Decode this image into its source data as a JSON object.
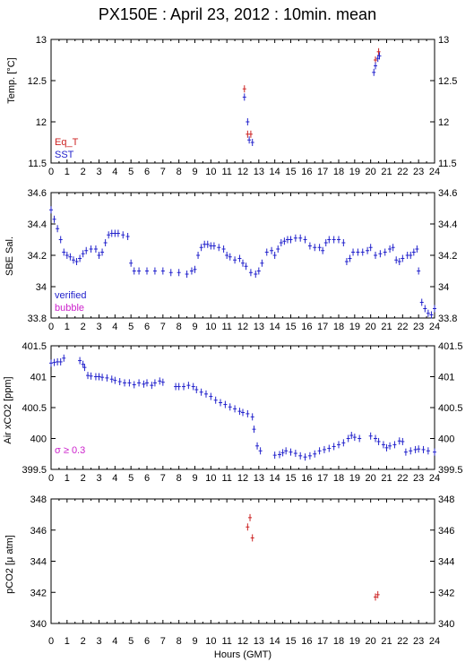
{
  "title": "PX150E : April 23, 2012 : 10min. mean",
  "colors": {
    "red": "#cc2222",
    "blue": "#2222cc",
    "magenta": "#cc22cc",
    "axis": "#000000"
  },
  "xaxis": {
    "label": "Hours (GMT)",
    "range": [
      0,
      24
    ],
    "ticks": [
      "0",
      "1",
      "2",
      "3",
      "4",
      "5",
      "6",
      "7",
      "8",
      "9",
      "10",
      "11",
      "12",
      "13",
      "14",
      "15",
      "16",
      "17",
      "18",
      "19",
      "20",
      "21",
      "22",
      "23",
      "24"
    ]
  },
  "chart_data": [
    {
      "type": "scatter",
      "ylabel": "Temp. [°C]",
      "ylim": [
        11.5,
        13
      ],
      "yticks": [
        "11.5",
        "12",
        "12.5",
        "13"
      ],
      "legend": [
        "Eq_T",
        "SST"
      ],
      "series": [
        {
          "name": "Eq_T",
          "color": "#cc2222",
          "points": [
            [
              12.1,
              12.4
            ],
            [
              12.3,
              11.85
            ],
            [
              12.5,
              11.85
            ],
            [
              20.3,
              12.75
            ],
            [
              20.5,
              12.85
            ]
          ]
        },
        {
          "name": "SST",
          "color": "#2222cc",
          "points": [
            [
              12.1,
              12.3
            ],
            [
              12.3,
              12.0
            ],
            [
              12.4,
              11.78
            ],
            [
              12.6,
              11.75
            ],
            [
              20.2,
              12.6
            ],
            [
              20.3,
              12.68
            ],
            [
              20.45,
              12.77
            ],
            [
              20.55,
              12.8
            ]
          ]
        }
      ]
    },
    {
      "type": "scatter",
      "ylabel": "SBE Sal.",
      "ylim": [
        33.8,
        34.6
      ],
      "yticks": [
        "33.8",
        "34",
        "34.2",
        "34.4",
        "34.6"
      ],
      "legend": [
        "verified",
        "bubble"
      ],
      "series": [
        {
          "name": "verified",
          "color": "#2222cc",
          "points": [
            [
              0.0,
              34.49
            ],
            [
              0.2,
              34.43
            ],
            [
              0.4,
              34.37
            ],
            [
              0.6,
              34.3
            ],
            [
              0.8,
              34.22
            ],
            [
              1.0,
              34.2
            ],
            [
              1.2,
              34.19
            ],
            [
              1.4,
              34.17
            ],
            [
              1.6,
              34.16
            ],
            [
              1.8,
              34.18
            ],
            [
              2.0,
              34.21
            ],
            [
              2.2,
              34.23
            ],
            [
              2.5,
              34.24
            ],
            [
              2.8,
              34.24
            ],
            [
              3.0,
              34.2
            ],
            [
              3.2,
              34.22
            ],
            [
              3.4,
              34.28
            ],
            [
              3.6,
              34.33
            ],
            [
              3.8,
              34.34
            ],
            [
              4.0,
              34.34
            ],
            [
              4.2,
              34.34
            ],
            [
              4.5,
              34.33
            ],
            [
              4.8,
              34.32
            ],
            [
              5.0,
              34.15
            ],
            [
              5.2,
              34.1
            ],
            [
              5.5,
              34.1
            ],
            [
              6.0,
              34.1
            ],
            [
              6.5,
              34.1
            ],
            [
              7.0,
              34.1
            ],
            [
              7.5,
              34.09
            ],
            [
              8.0,
              34.09
            ],
            [
              8.5,
              34.08
            ],
            [
              8.8,
              34.1
            ],
            [
              9.0,
              34.11
            ],
            [
              9.2,
              34.2
            ],
            [
              9.4,
              34.25
            ],
            [
              9.6,
              34.27
            ],
            [
              9.8,
              34.27
            ],
            [
              10.0,
              34.26
            ],
            [
              10.2,
              34.26
            ],
            [
              10.5,
              34.25
            ],
            [
              10.8,
              34.24
            ],
            [
              11.0,
              34.2
            ],
            [
              11.2,
              34.19
            ],
            [
              11.5,
              34.17
            ],
            [
              11.8,
              34.18
            ],
            [
              12.0,
              34.15
            ],
            [
              12.2,
              34.13
            ],
            [
              12.5,
              34.09
            ],
            [
              12.8,
              34.08
            ],
            [
              13.0,
              34.1
            ],
            [
              13.2,
              34.15
            ],
            [
              13.5,
              34.22
            ],
            [
              13.8,
              34.23
            ],
            [
              14.0,
              34.2
            ],
            [
              14.2,
              34.24
            ],
            [
              14.4,
              34.28
            ],
            [
              14.6,
              34.29
            ],
            [
              14.8,
              34.3
            ],
            [
              15.0,
              34.3
            ],
            [
              15.3,
              34.31
            ],
            [
              15.6,
              34.31
            ],
            [
              15.9,
              34.3
            ],
            [
              16.2,
              34.26
            ],
            [
              16.5,
              34.25
            ],
            [
              16.8,
              34.25
            ],
            [
              17.0,
              34.23
            ],
            [
              17.2,
              34.28
            ],
            [
              17.4,
              34.3
            ],
            [
              17.7,
              34.3
            ],
            [
              18.0,
              34.3
            ],
            [
              18.3,
              34.28
            ],
            [
              18.5,
              34.16
            ],
            [
              18.7,
              34.18
            ],
            [
              18.9,
              34.22
            ],
            [
              19.2,
              34.22
            ],
            [
              19.5,
              34.22
            ],
            [
              19.8,
              34.23
            ],
            [
              20.0,
              34.25
            ],
            [
              20.3,
              34.2
            ],
            [
              20.6,
              34.21
            ],
            [
              20.9,
              34.22
            ],
            [
              21.2,
              34.24
            ],
            [
              21.4,
              34.25
            ],
            [
              21.6,
              34.17
            ],
            [
              21.8,
              34.16
            ],
            [
              22.0,
              34.18
            ],
            [
              22.3,
              34.2
            ],
            [
              22.5,
              34.2
            ],
            [
              22.7,
              34.22
            ],
            [
              22.9,
              34.24
            ],
            [
              23.0,
              34.1
            ],
            [
              23.2,
              33.9
            ],
            [
              23.4,
              33.86
            ],
            [
              23.6,
              33.83
            ],
            [
              23.8,
              33.82
            ],
            [
              24.0,
              33.86
            ]
          ]
        },
        {
          "name": "bubble",
          "color": "#cc22cc",
          "points": []
        }
      ]
    },
    {
      "type": "scatter",
      "ylabel": "Air xCO2 [ppm]",
      "ylim": [
        399.5,
        401.5
      ],
      "yticks": [
        "399.5",
        "400",
        "400.5",
        "401",
        "401.5"
      ],
      "legend": [
        "σ ≥ 0.3"
      ],
      "series": [
        {
          "name": "σ ≥ 0.3",
          "color": "#2222cc",
          "points": [
            [
              0.0,
              401.22
            ],
            [
              0.2,
              401.23
            ],
            [
              0.4,
              401.24
            ],
            [
              0.6,
              401.24
            ],
            [
              0.8,
              401.3
            ],
            [
              1.8,
              401.26
            ],
            [
              2.0,
              401.2
            ],
            [
              2.1,
              401.15
            ],
            [
              2.3,
              401.02
            ],
            [
              2.5,
              401.01
            ],
            [
              2.8,
              401.0
            ],
            [
              3.0,
              401.0
            ],
            [
              3.2,
              400.99
            ],
            [
              3.5,
              400.98
            ],
            [
              3.8,
              400.96
            ],
            [
              4.0,
              400.94
            ],
            [
              4.3,
              400.92
            ],
            [
              4.6,
              400.9
            ],
            [
              4.9,
              400.9
            ],
            [
              5.2,
              400.87
            ],
            [
              5.5,
              400.9
            ],
            [
              5.8,
              400.88
            ],
            [
              6.0,
              400.9
            ],
            [
              6.3,
              400.86
            ],
            [
              6.5,
              400.9
            ],
            [
              6.8,
              400.93
            ],
            [
              7.0,
              400.91
            ],
            [
              7.8,
              400.84
            ],
            [
              8.0,
              400.84
            ],
            [
              8.3,
              400.84
            ],
            [
              8.6,
              400.86
            ],
            [
              8.9,
              400.84
            ],
            [
              9.1,
              400.79
            ],
            [
              9.4,
              400.75
            ],
            [
              9.7,
              400.72
            ],
            [
              10.0,
              400.68
            ],
            [
              10.3,
              400.62
            ],
            [
              10.6,
              400.58
            ],
            [
              10.9,
              400.55
            ],
            [
              11.2,
              400.51
            ],
            [
              11.5,
              400.48
            ],
            [
              11.8,
              400.44
            ],
            [
              12.0,
              400.42
            ],
            [
              12.3,
              400.4
            ],
            [
              12.6,
              400.35
            ],
            [
              12.7,
              400.15
            ],
            [
              12.9,
              399.88
            ],
            [
              13.1,
              399.8
            ],
            [
              14.0,
              399.73
            ],
            [
              14.3,
              399.74
            ],
            [
              14.5,
              399.77
            ],
            [
              14.7,
              399.8
            ],
            [
              15.0,
              399.78
            ],
            [
              15.3,
              399.76
            ],
            [
              15.6,
              399.72
            ],
            [
              15.9,
              399.7
            ],
            [
              16.2,
              399.72
            ],
            [
              16.5,
              399.75
            ],
            [
              16.8,
              399.8
            ],
            [
              17.1,
              399.82
            ],
            [
              17.4,
              399.84
            ],
            [
              17.7,
              399.87
            ],
            [
              18.0,
              399.9
            ],
            [
              18.3,
              399.93
            ],
            [
              18.6,
              400.0
            ],
            [
              18.8,
              400.05
            ],
            [
              19.0,
              400.02
            ],
            [
              19.3,
              400.0
            ],
            [
              20.0,
              400.04
            ],
            [
              20.3,
              400.0
            ],
            [
              20.5,
              399.95
            ],
            [
              20.8,
              399.9
            ],
            [
              21.0,
              399.85
            ],
            [
              21.2,
              399.88
            ],
            [
              21.5,
              399.9
            ],
            [
              21.8,
              399.96
            ],
            [
              22.0,
              399.95
            ],
            [
              22.2,
              399.78
            ],
            [
              22.5,
              399.8
            ],
            [
              22.8,
              399.82
            ],
            [
              23.0,
              399.83
            ],
            [
              23.3,
              399.82
            ],
            [
              23.6,
              399.8
            ],
            [
              24.0,
              399.78
            ]
          ]
        }
      ]
    },
    {
      "type": "scatter",
      "ylabel": "pCO2 [μ atm]",
      "ylim": [
        340,
        348
      ],
      "yticks": [
        "340",
        "342",
        "344",
        "346",
        "348"
      ],
      "series": [
        {
          "name": "pCO2",
          "color": "#cc2222",
          "points": [
            [
              12.3,
              346.2
            ],
            [
              12.45,
              346.8
            ],
            [
              12.6,
              345.5
            ],
            [
              20.3,
              341.7
            ],
            [
              20.45,
              341.85
            ]
          ]
        }
      ]
    }
  ]
}
